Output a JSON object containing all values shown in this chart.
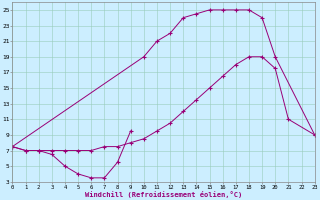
{
  "bg_color": "#cceeff",
  "line_color": "#990077",
  "xlabel": "Windchill (Refroidissement éolien,°C)",
  "xlim": [
    0,
    23
  ],
  "ylim": [
    3,
    26
  ],
  "xtick_labels": [
    "0",
    "1",
    "2",
    "3",
    "4",
    "5",
    "6",
    "7",
    "8",
    "9",
    "10",
    "11",
    "12",
    "13",
    "14",
    "15",
    "16",
    "17",
    "18",
    "19",
    "20",
    "21",
    "22",
    "23"
  ],
  "ytick_labels": [
    "3",
    "5",
    "7",
    "9",
    "11",
    "13",
    "15",
    "17",
    "19",
    "21",
    "23",
    "25"
  ],
  "ytick_vals": [
    3,
    5,
    7,
    9,
    11,
    13,
    15,
    17,
    19,
    21,
    23,
    25
  ],
  "line1_x": [
    0,
    1,
    2,
    3,
    4,
    5,
    6,
    7,
    8,
    9
  ],
  "line1_y": [
    7.5,
    7,
    7,
    6.5,
    5,
    4,
    3.5,
    3.5,
    5.5,
    9.5
  ],
  "line2_x": [
    0,
    1,
    2,
    3,
    4,
    5,
    6,
    7,
    8,
    9,
    10,
    11,
    12,
    13,
    14,
    15,
    16,
    17,
    18,
    19,
    20,
    21,
    23
  ],
  "line2_y": [
    7.5,
    7,
    7,
    7,
    7,
    7,
    7,
    7.5,
    7.5,
    8,
    8.5,
    9.5,
    10.5,
    12,
    13.5,
    15,
    16.5,
    18,
    19,
    19,
    17.5,
    11,
    9
  ],
  "line3_x": [
    0,
    10,
    11,
    12,
    13,
    14,
    15,
    16,
    17,
    18,
    19,
    20,
    23
  ],
  "line3_y": [
    7.5,
    19,
    21,
    22,
    24,
    24.5,
    25,
    25,
    25,
    25,
    24,
    19,
    9
  ]
}
